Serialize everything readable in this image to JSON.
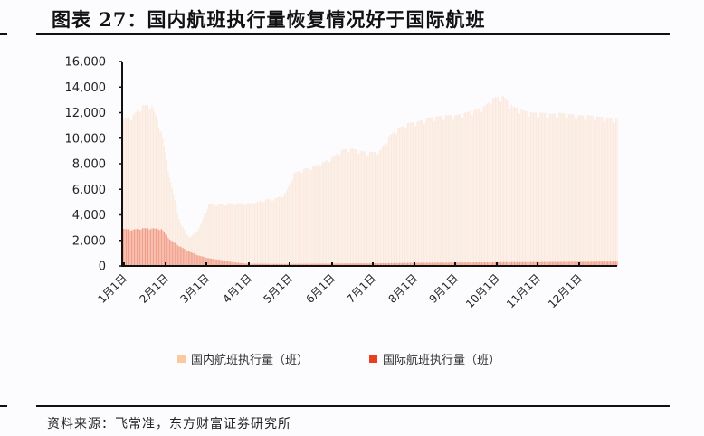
{
  "header": {
    "title": "图表 27：国内航班执行量恢复情况好于国际航班"
  },
  "footer": {
    "source": "资料来源：飞常准，东方财富证券研究所"
  },
  "legend": [
    {
      "label": "国内航班执行量（班）",
      "color": "#f9c9a0"
    },
    {
      "label": "国际航班执行量（班）",
      "color": "#e8401c"
    }
  ],
  "chart_data": {
    "type": "bar",
    "title": "国内航班执行量恢复情况好于国际航班",
    "xlabel": "",
    "ylabel": "",
    "ylim": [
      0,
      16000
    ],
    "yticks": [
      "0",
      "2,000",
      "4,000",
      "6,000",
      "8,000",
      "10,000",
      "12,000",
      "14,000",
      "16,000"
    ],
    "xticks": [
      "1月1日",
      "2月1日",
      "3月1日",
      "4月1日",
      "5月1日",
      "6月1日",
      "7月1日",
      "8月1日",
      "9月1日",
      "10月1日",
      "11月1日",
      "12月1日"
    ],
    "legend_position": "bottom",
    "grid": false,
    "series": [
      {
        "name": "国内航班执行量（班）",
        "color": "#f9c9a0",
        "x": [
          "1/1",
          "1/8",
          "1/15",
          "1/22",
          "1/29",
          "2/5",
          "2/12",
          "2/19",
          "2/26",
          "3/4",
          "3/11",
          "3/18",
          "3/25",
          "4/1",
          "4/8",
          "4/15",
          "4/22",
          "4/29",
          "5/6",
          "5/13",
          "5/20",
          "5/27",
          "6/3",
          "6/10",
          "6/17",
          "6/24",
          "7/1",
          "7/8",
          "7/15",
          "7/22",
          "7/29",
          "8/5",
          "8/12",
          "8/19",
          "8/26",
          "9/2",
          "9/9",
          "9/16",
          "9/23",
          "9/30",
          "10/7",
          "10/14",
          "10/21",
          "10/28",
          "11/4",
          "11/11",
          "11/18",
          "11/25",
          "12/2",
          "12/9",
          "12/16",
          "12/23",
          "12/31"
        ],
        "values": [
          11500,
          11800,
          12600,
          12600,
          10500,
          6500,
          3300,
          2200,
          3000,
          4900,
          4800,
          4900,
          4900,
          4900,
          5000,
          5200,
          5300,
          5600,
          7300,
          7600,
          7800,
          8100,
          8500,
          9100,
          9200,
          9000,
          8900,
          9000,
          10200,
          10800,
          11200,
          11300,
          11600,
          11700,
          11800,
          11800,
          12000,
          12200,
          12500,
          13200,
          13300,
          12500,
          12200,
          12000,
          12000,
          11900,
          12000,
          11900,
          11800,
          11800,
          11700,
          11600,
          11500
        ]
      },
      {
        "name": "国际航班执行量（班）",
        "color": "#e8401c",
        "x": [
          "1/1",
          "1/8",
          "1/15",
          "1/22",
          "1/29",
          "2/5",
          "2/12",
          "2/19",
          "2/26",
          "3/4",
          "3/11",
          "3/18",
          "3/25",
          "4/1",
          "4/8",
          "4/15",
          "4/22",
          "4/29",
          "5/6",
          "5/13",
          "5/20",
          "5/27",
          "6/3",
          "6/10",
          "6/17",
          "6/24",
          "7/1",
          "7/8",
          "7/15",
          "7/22",
          "7/29",
          "8/5",
          "8/12",
          "8/19",
          "8/26",
          "9/2",
          "9/9",
          "9/16",
          "9/23",
          "9/30",
          "10/7",
          "10/14",
          "10/21",
          "10/28",
          "11/4",
          "11/11",
          "11/18",
          "11/25",
          "12/2",
          "12/9",
          "12/16",
          "12/23",
          "12/31"
        ],
        "values": [
          2900,
          2850,
          2950,
          2950,
          2900,
          2000,
          1500,
          1100,
          800,
          600,
          500,
          350,
          250,
          180,
          170,
          170,
          160,
          160,
          160,
          170,
          170,
          180,
          180,
          190,
          200,
          200,
          200,
          210,
          220,
          230,
          240,
          250,
          250,
          260,
          260,
          270,
          270,
          280,
          280,
          290,
          300,
          300,
          300,
          310,
          310,
          320,
          320,
          330,
          330,
          330,
          340,
          340,
          340
        ]
      }
    ]
  }
}
